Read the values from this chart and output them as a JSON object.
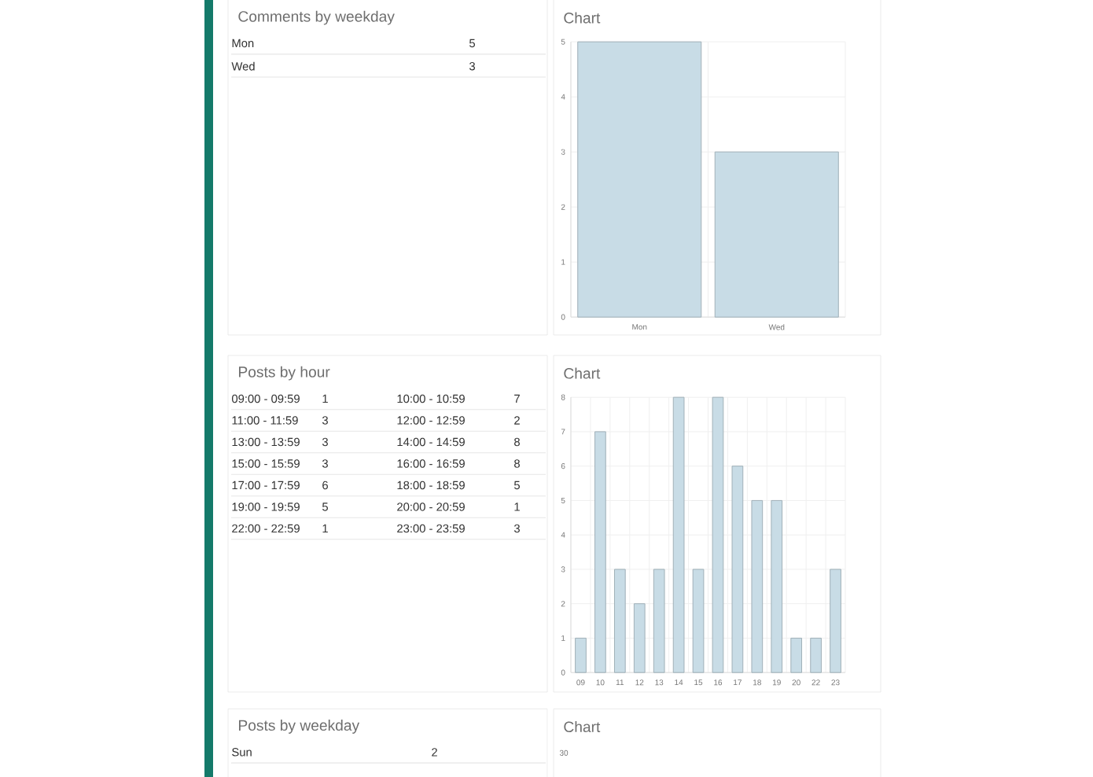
{
  "chart_data": [
    {
      "type": "other",
      "title": "Comments by weekday",
      "categories": [
        "Mon",
        "Wed"
      ],
      "values": [
        5,
        3
      ],
      "data_labels": true
    },
    {
      "type": "bar",
      "title": "Chart",
      "categories": [
        "Mon",
        "Wed"
      ],
      "values": [
        5,
        3
      ],
      "color": "#c8dce6",
      "ylim": [
        0,
        5
      ],
      "yticks": [
        0,
        1,
        2,
        3,
        4,
        5
      ],
      "grid": true
    },
    {
      "type": "other",
      "title": "Posts by hour",
      "categories": [
        "09:00 - 09:59",
        "10:00 - 10:59",
        "11:00 - 11:59",
        "12:00 - 12:59",
        "13:00 - 13:59",
        "14:00 - 14:59",
        "15:00 - 15:59",
        "16:00 - 16:59",
        "17:00 - 17:59",
        "18:00 - 18:59",
        "19:00 - 19:59",
        "20:00 - 20:59",
        "22:00 - 22:59",
        "23:00 - 23:59"
      ],
      "values": [
        1,
        7,
        3,
        2,
        3,
        8,
        3,
        8,
        6,
        5,
        5,
        1,
        1,
        3
      ],
      "data_labels": true
    },
    {
      "type": "bar",
      "title": "Chart",
      "categories": [
        "09",
        "10",
        "11",
        "12",
        "13",
        "14",
        "15",
        "16",
        "17",
        "18",
        "19",
        "20",
        "22",
        "23"
      ],
      "values": [
        1,
        7,
        3,
        2,
        3,
        8,
        3,
        8,
        6,
        5,
        5,
        1,
        1,
        3
      ],
      "color": "#c8dce6",
      "ylim": [
        0,
        8
      ],
      "yticks": [
        0,
        1,
        2,
        3,
        4,
        5,
        6,
        7,
        8
      ],
      "grid": true
    },
    {
      "type": "other",
      "title": "Posts by weekday",
      "categories": [
        "Sun"
      ],
      "values": [
        2
      ],
      "data_labels": true
    },
    {
      "type": "other",
      "title": "Chart",
      "annotations": [
        "30"
      ]
    }
  ]
}
